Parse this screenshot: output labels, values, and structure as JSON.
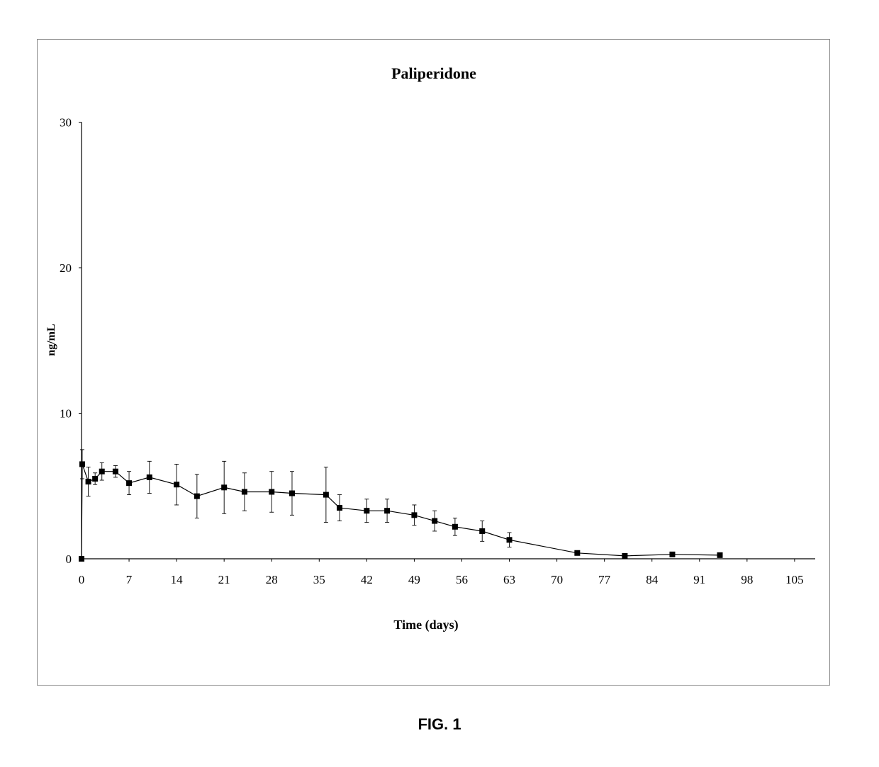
{
  "figure_caption": "FIG. 1",
  "chart_data": {
    "type": "line",
    "title": "Paliperidone",
    "xlabel": "Time (days)",
    "ylabel": "ng/mL",
    "xlim": [
      0,
      108
    ],
    "ylim": [
      0,
      30
    ],
    "x_ticks": [
      0,
      7,
      14,
      21,
      28,
      35,
      42,
      49,
      56,
      63,
      70,
      77,
      84,
      91,
      98,
      105
    ],
    "y_ticks": [
      0,
      10,
      20,
      30
    ],
    "grid": false,
    "legend": "none",
    "marker": "square",
    "color": "#000000",
    "series": [
      {
        "x": [
          0,
          0.1,
          1,
          2,
          3,
          5,
          7,
          10,
          14,
          17,
          21,
          24,
          28,
          31,
          36,
          38,
          42,
          45,
          49,
          52,
          55,
          59,
          63,
          73,
          80,
          87,
          94
        ],
        "y": [
          0,
          6.5,
          5.3,
          5.5,
          6.0,
          6.0,
          5.2,
          5.6,
          5.1,
          4.3,
          4.9,
          4.6,
          4.6,
          4.5,
          4.4,
          3.5,
          3.3,
          3.3,
          3.0,
          2.6,
          2.2,
          1.9,
          1.3,
          0.4,
          0.2,
          0.3,
          0.25
        ],
        "err": [
          0,
          1.0,
          1.0,
          0.4,
          0.6,
          0.4,
          0.8,
          1.1,
          1.4,
          1.5,
          1.8,
          1.3,
          1.4,
          1.5,
          1.9,
          0.9,
          0.8,
          0.8,
          0.7,
          0.7,
          0.6,
          0.7,
          0.5,
          0,
          0,
          0,
          0
        ]
      }
    ]
  }
}
